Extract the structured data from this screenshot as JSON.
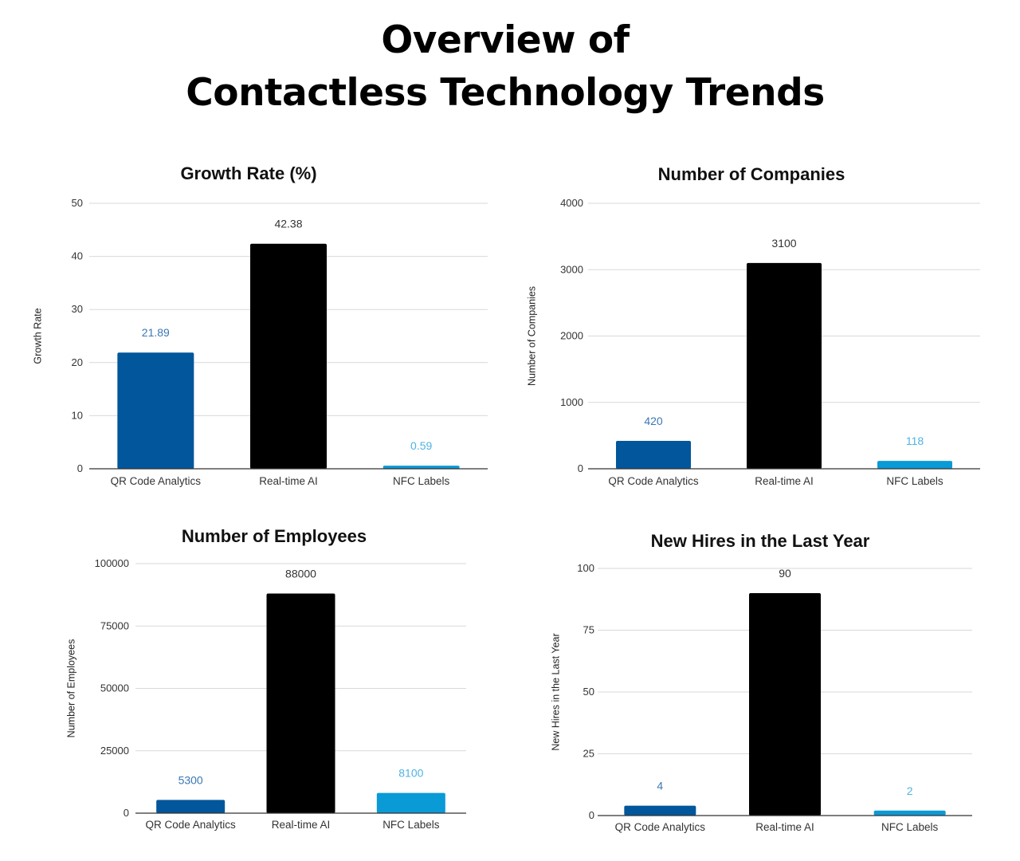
{
  "page": {
    "title_line1": "Overview of",
    "title_line2": "Contactless Technology Trends"
  },
  "colors": {
    "qr": "#02569b",
    "realtime": "#000000",
    "nfc": "#0a9ad6",
    "qr_label": "#3a77b6",
    "nfc_label": "#4fb3e3",
    "realtime_label": "#333333",
    "grid": "#d9d9d9",
    "axis": "#333333"
  },
  "chart_data": [
    {
      "type": "bar",
      "title": "Growth Rate (%)",
      "xlabel": "",
      "ylabel": "Growth Rate",
      "categories": [
        "QR Code Analytics",
        "Real-time AI",
        "NFC Labels"
      ],
      "values": [
        21.89,
        42.38,
        0.59
      ],
      "value_labels": [
        "21.89",
        "42.38",
        "0.59"
      ],
      "ylim": [
        0,
        50
      ],
      "yticks": [
        0,
        10,
        20,
        30,
        40,
        50
      ],
      "ytick_labels": [
        "0",
        "10",
        "20",
        "30",
        "40",
        "50"
      ],
      "grid": true
    },
    {
      "type": "bar",
      "title": "Number of Companies",
      "xlabel": "",
      "ylabel": "Number of Companies",
      "categories": [
        "QR Code Analytics",
        "Real-time AI",
        "NFC Labels"
      ],
      "values": [
        420,
        3100,
        118
      ],
      "value_labels": [
        "420",
        "3100",
        "118"
      ],
      "ylim": [
        0,
        4000
      ],
      "yticks": [
        0,
        1000,
        2000,
        3000,
        4000
      ],
      "ytick_labels": [
        "0",
        "1000",
        "2000",
        "3000",
        "4000"
      ],
      "grid": true
    },
    {
      "type": "bar",
      "title": "Number of Employees",
      "xlabel": "",
      "ylabel": "Number of Employees",
      "categories": [
        "QR Code Analytics",
        "Real-time AI",
        "NFC Labels"
      ],
      "values": [
        5300,
        88000,
        8100
      ],
      "value_labels": [
        "5300",
        "88000",
        "8100"
      ],
      "ylim": [
        0,
        100000
      ],
      "yticks": [
        0,
        25000,
        50000,
        75000,
        100000
      ],
      "ytick_labels": [
        "0",
        "25000",
        "50000",
        "75000",
        "100000"
      ],
      "grid": true
    },
    {
      "type": "bar",
      "title": "New Hires in the Last Year",
      "xlabel": "",
      "ylabel": "New Hires in the Last Year",
      "categories": [
        "QR Code Analytics",
        "Real-time AI",
        "NFC Labels"
      ],
      "values": [
        4,
        90,
        2
      ],
      "value_labels": [
        "4",
        "90",
        "2"
      ],
      "ylim": [
        0,
        100
      ],
      "yticks": [
        0,
        25,
        50,
        75,
        100
      ],
      "ytick_labels": [
        "0",
        "25",
        "50",
        "75",
        "100"
      ],
      "grid": true
    }
  ]
}
